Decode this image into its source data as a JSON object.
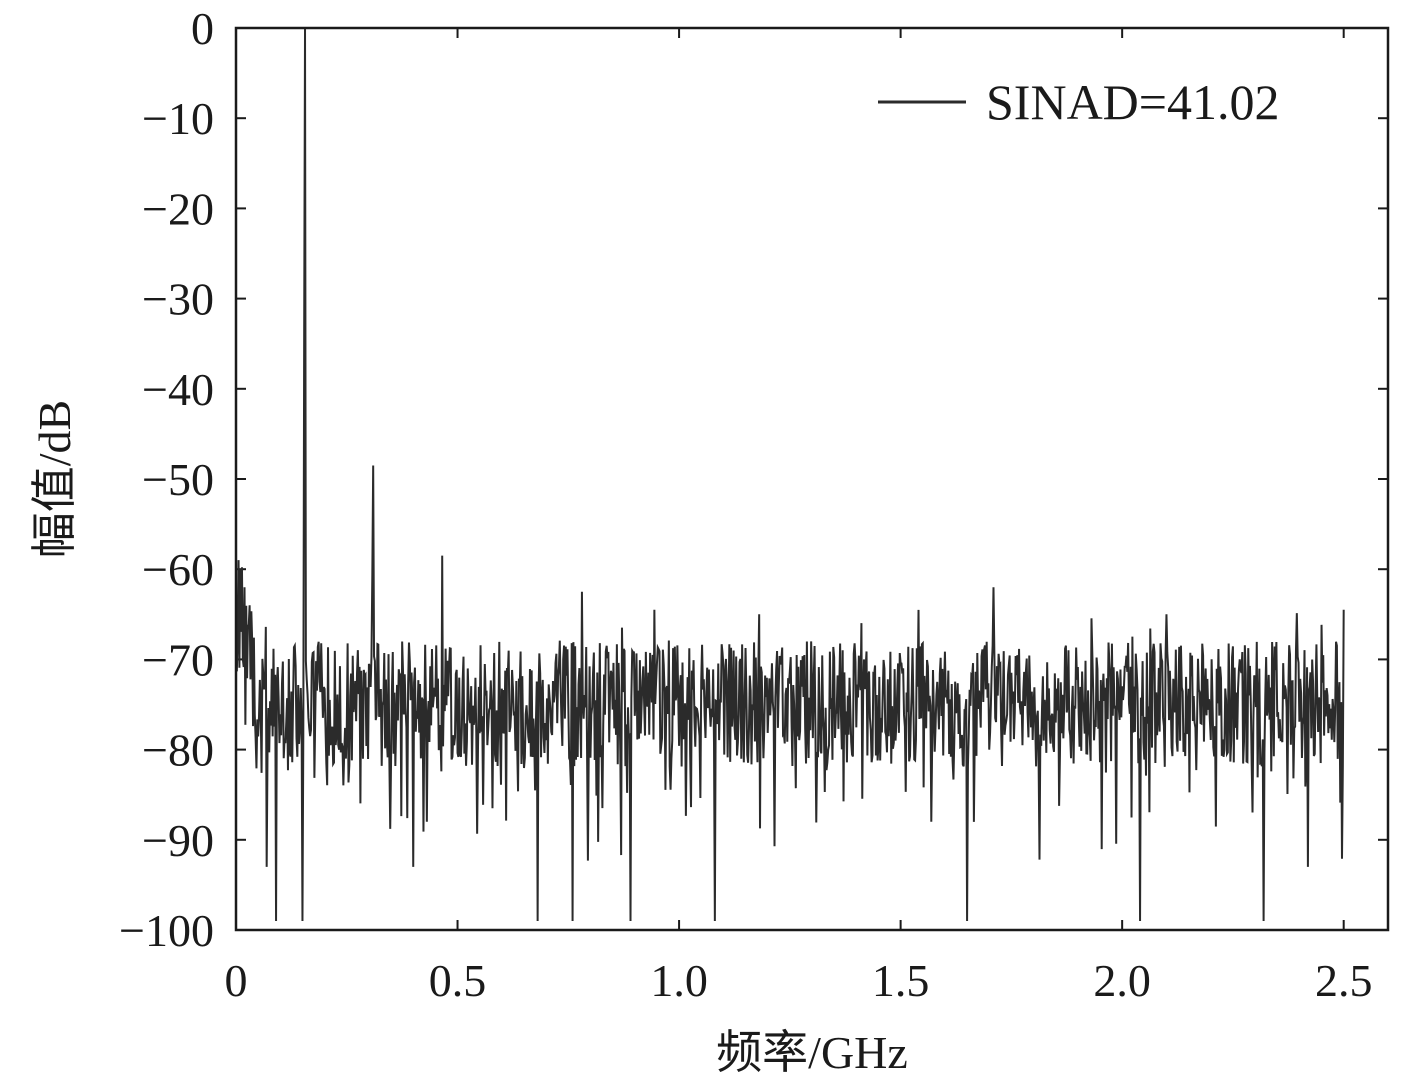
{
  "chart_data": {
    "type": "line",
    "xlabel": "频率/GHz",
    "ylabel": "幅值/dB",
    "xlim": [
      0,
      2.6
    ],
    "ylim": [
      -100,
      0
    ],
    "x_ticks": [
      0,
      0.5,
      1.0,
      1.5,
      2.0,
      2.5
    ],
    "x_tick_labels": [
      "0",
      "0.5",
      "1.0",
      "1.5",
      "2.0",
      "2.5"
    ],
    "y_ticks": [
      0,
      -10,
      -20,
      -30,
      -40,
      -50,
      -60,
      -70,
      -80,
      -90,
      -100
    ],
    "y_tick_labels": [
      "0",
      "−10",
      "−20",
      "−30",
      "−40",
      "−50",
      "−60",
      "−70",
      "−80",
      "−90",
      "−100"
    ],
    "grid": false,
    "legend_position": "top-right",
    "series": [
      {
        "name": "SINAD=41.02",
        "color": "#2b2b2b",
        "x_range": [
          0,
          2.5
        ],
        "noise_floor": -75,
        "dense_noise": true,
        "peaks": [
          {
            "x": 0.0,
            "y": -61
          },
          {
            "x": 0.005,
            "y": -59
          },
          {
            "x": 0.01,
            "y": -60
          },
          {
            "x": 0.02,
            "y": -62
          },
          {
            "x": 0.03,
            "y": -64
          },
          {
            "x": 0.155,
            "y": 0
          },
          {
            "x": 0.153,
            "y": -34
          },
          {
            "x": 0.31,
            "y": -48.5
          },
          {
            "x": 0.307,
            "y": -60.5
          },
          {
            "x": 0.465,
            "y": -58.5
          },
          {
            "x": 0.78,
            "y": -62.5
          },
          {
            "x": 0.945,
            "y": -64.5
          },
          {
            "x": 1.18,
            "y": -65
          },
          {
            "x": 1.71,
            "y": -62
          },
          {
            "x": 2.1,
            "y": -65
          },
          {
            "x": 2.5,
            "y": -64.5
          }
        ],
        "dips": [
          {
            "x": 0.07,
            "y": -93
          },
          {
            "x": 0.09,
            "y": -99
          },
          {
            "x": 0.15,
            "y": -99
          },
          {
            "x": 0.4,
            "y": -93
          },
          {
            "x": 0.68,
            "y": -99
          },
          {
            "x": 0.76,
            "y": -99
          },
          {
            "x": 0.89,
            "y": -99
          },
          {
            "x": 1.08,
            "y": -99
          },
          {
            "x": 1.65,
            "y": -99
          },
          {
            "x": 2.04,
            "y": -99
          },
          {
            "x": 2.32,
            "y": -99
          },
          {
            "x": 2.42,
            "y": -93
          }
        ]
      }
    ]
  }
}
